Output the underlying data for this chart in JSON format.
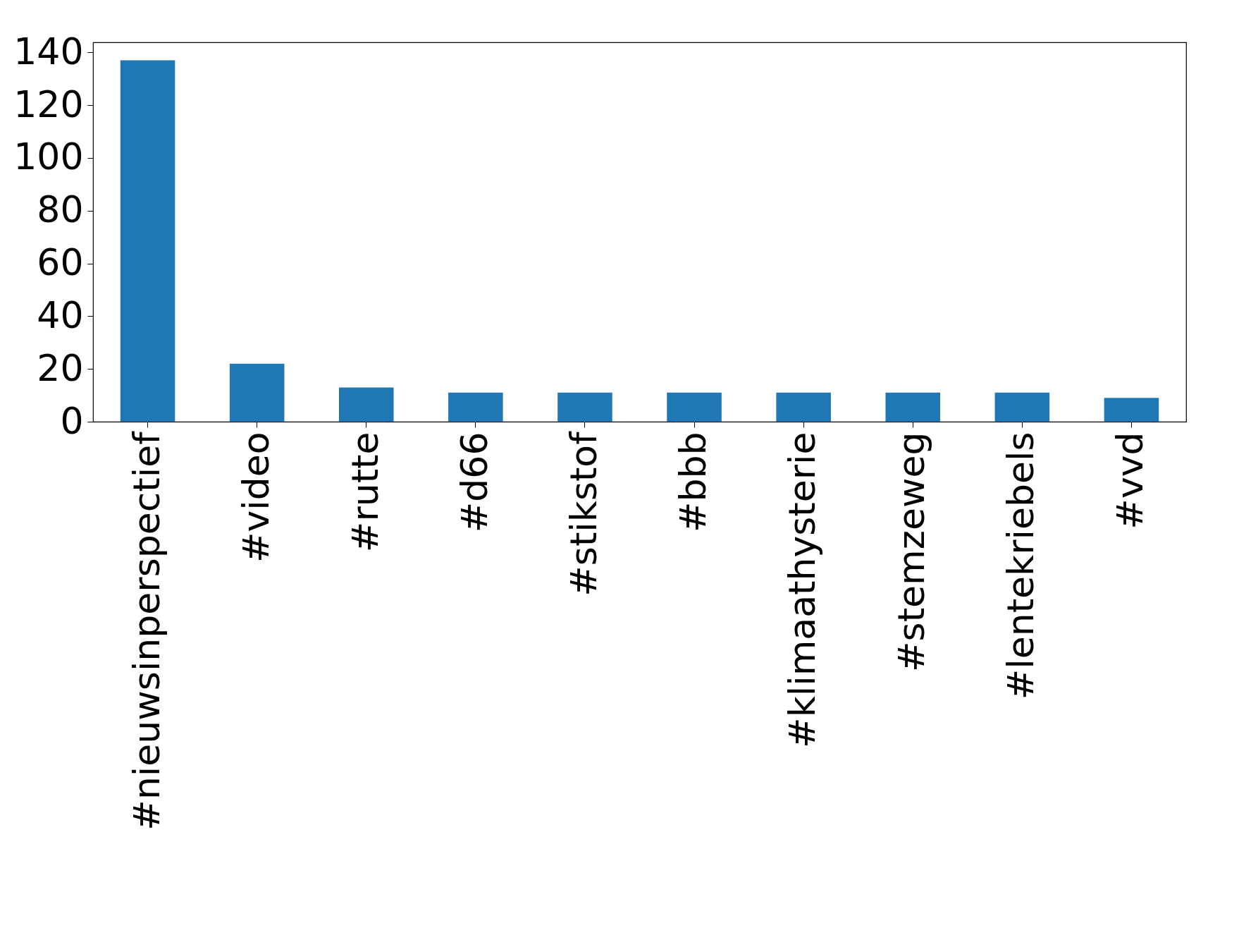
{
  "chart_data": {
    "type": "bar",
    "categories": [
      "#nieuwsinperspectief",
      "#video",
      "#rutte",
      "#d66",
      "#stikstof",
      "#bbb",
      "#klimaathysterie",
      "#stemzeweg",
      "#lentekriebels",
      "#vvd"
    ],
    "values": [
      137,
      22,
      13,
      11,
      11,
      11,
      11,
      11,
      11,
      9
    ],
    "color": "#1f77b4",
    "ylim": [
      0,
      143.85
    ],
    "yticks": [
      0,
      20,
      40,
      60,
      80,
      100,
      120,
      140
    ],
    "grid": false
  }
}
